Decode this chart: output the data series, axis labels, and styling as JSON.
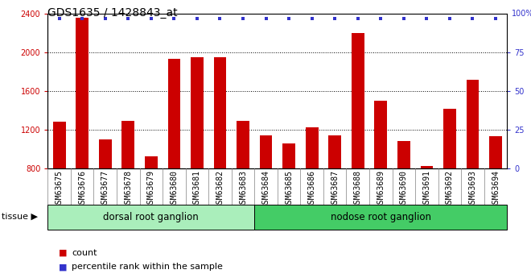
{
  "title": "GDS1635 / 1428843_at",
  "samples": [
    "GSM63675",
    "GSM63676",
    "GSM63677",
    "GSM63678",
    "GSM63679",
    "GSM63680",
    "GSM63681",
    "GSM63682",
    "GSM63683",
    "GSM63684",
    "GSM63685",
    "GSM63686",
    "GSM63687",
    "GSM63688",
    "GSM63689",
    "GSM63690",
    "GSM63691",
    "GSM63692",
    "GSM63693",
    "GSM63694"
  ],
  "counts": [
    1280,
    2360,
    1100,
    1290,
    920,
    1930,
    1950,
    1950,
    1290,
    1140,
    1060,
    1220,
    1140,
    2200,
    1500,
    1080,
    820,
    1420,
    1720,
    1130
  ],
  "percentile_values": [
    97,
    97,
    97,
    97,
    97,
    97,
    97,
    97,
    97,
    97,
    97,
    97,
    97,
    97,
    97,
    97,
    97,
    97,
    97,
    97
  ],
  "bar_color": "#cc0000",
  "dot_color": "#3333cc",
  "ylim_left": [
    800,
    2400
  ],
  "ylim_right": [
    0,
    100
  ],
  "yticks_left": [
    800,
    1200,
    1600,
    2000,
    2400
  ],
  "yticks_right": [
    0,
    25,
    50,
    75
  ],
  "groups": [
    {
      "label": "dorsal root ganglion",
      "start": 0,
      "end": 9,
      "color": "#aaeebb"
    },
    {
      "label": "nodose root ganglion",
      "start": 9,
      "end": 20,
      "color": "#44cc66"
    }
  ],
  "tissue_label": "tissue",
  "legend_count_label": "count",
  "legend_pct_label": "percentile rank within the sample",
  "xtick_bg_color": "#d0d0d0",
  "plot_bg_color": "#ffffff",
  "grid_color": "#000000",
  "title_fontsize": 10,
  "tick_fontsize": 7,
  "label_fontsize": 8,
  "group_fontsize": 8.5
}
